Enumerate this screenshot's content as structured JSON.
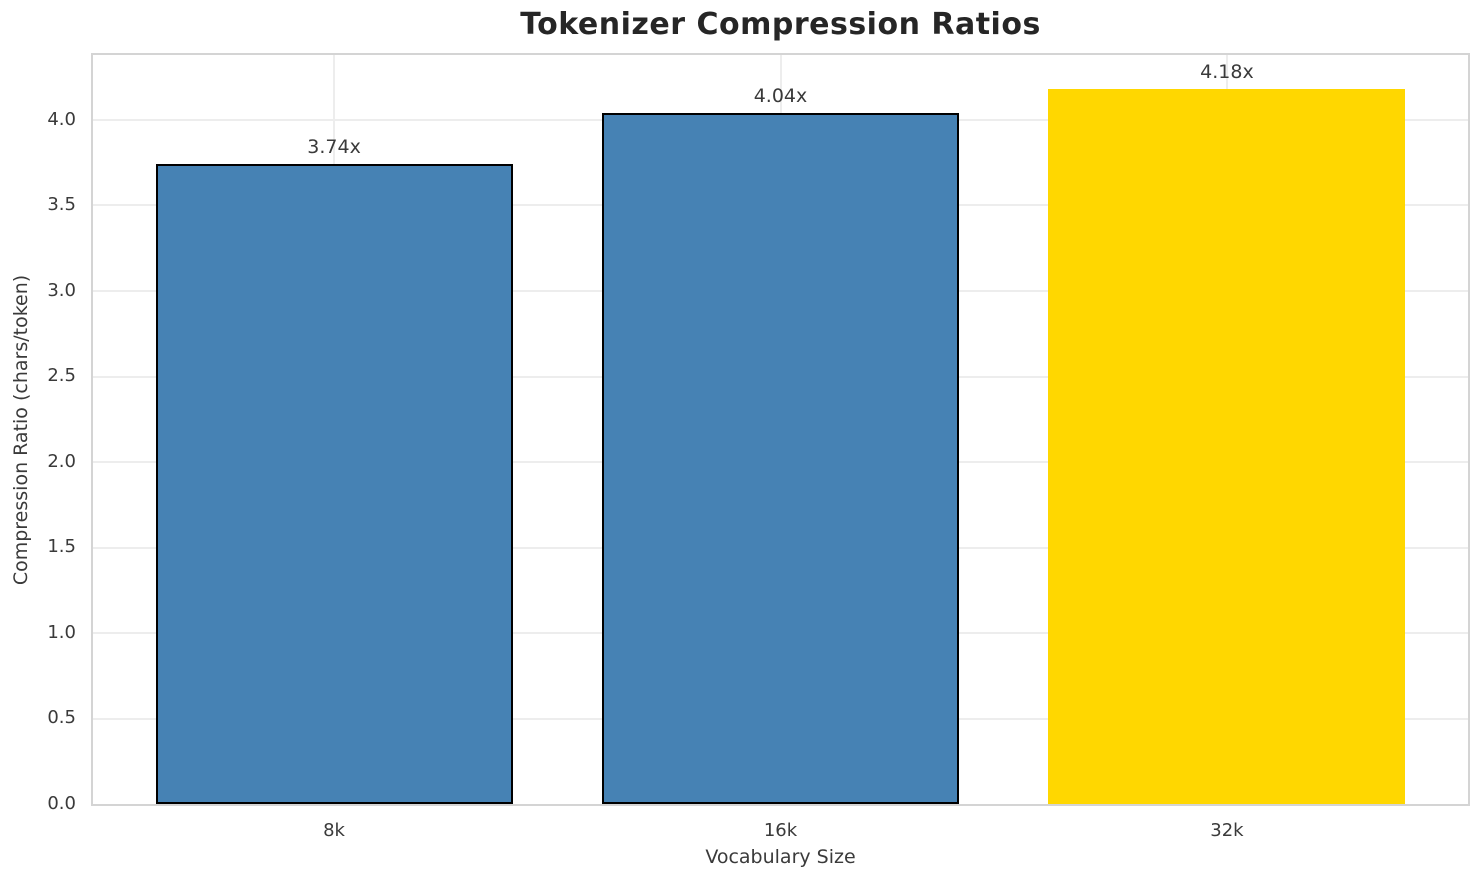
{
  "chart_data": {
    "type": "bar",
    "title": "Tokenizer Compression Ratios",
    "xlabel": "Vocabulary Size",
    "ylabel": "Compression Ratio (chars/token)",
    "categories": [
      "8k",
      "16k",
      "32k"
    ],
    "values": [
      3.74,
      4.04,
      4.18
    ],
    "bar_labels": [
      "3.74x",
      "4.04x",
      "4.18x"
    ],
    "bar_colors": [
      "#4682B4",
      "#4682B4",
      "#FFD700"
    ],
    "bar_edge_colors": [
      "#000000",
      "#000000",
      "none"
    ],
    "ylim": [
      0,
      4.38
    ],
    "yticks": [
      0.0,
      0.5,
      1.0,
      1.5,
      2.0,
      2.5,
      3.0,
      3.5,
      4.0
    ],
    "ytick_labels": [
      "0.0",
      "0.5",
      "1.0",
      "1.5",
      "2.0",
      "2.5",
      "3.0",
      "3.5",
      "4.0"
    ],
    "grid": true,
    "legend": "none",
    "style": {
      "grid_color": "#ededed",
      "spine_color": "#d4d4d4",
      "text_color": "#3a3a3a",
      "title_color": "#262626",
      "background": "#ffffff"
    }
  }
}
